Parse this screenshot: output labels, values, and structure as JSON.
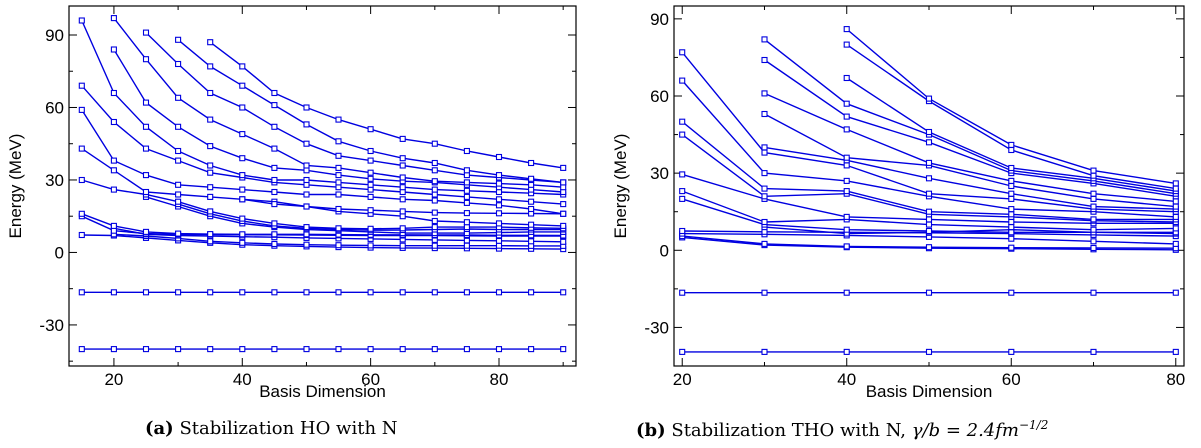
{
  "chart_data": [
    {
      "type": "line",
      "panel_label": "(a)",
      "caption": "Stabilization HO with N",
      "xlabel": "Basis Dimension",
      "ylabel": "Energy (MeV)",
      "xlim": [
        13,
        92
      ],
      "ylim": [
        -47,
        102
      ],
      "xticks": [
        20,
        40,
        60,
        80
      ],
      "yticks": [
        -30,
        0,
        30,
        60,
        90
      ],
      "grid": false,
      "color": "#0000e0",
      "x": [
        15,
        20,
        25,
        30,
        35,
        40,
        45,
        50,
        55,
        60,
        65,
        70,
        75,
        80,
        85,
        90
      ],
      "series": [
        {
          "values": [
            -40,
            -40,
            -40,
            -40,
            -40,
            -40,
            -40,
            -40,
            -40,
            -40,
            -40,
            -40,
            -40,
            -40,
            -40,
            -40
          ]
        },
        {
          "values": [
            -16.5,
            -16.5,
            -16.5,
            -16.5,
            -16.5,
            -16.5,
            -16.5,
            -16.5,
            -16.5,
            -16.5,
            -16.5,
            -16.5,
            -16.5,
            -16.5,
            -16.5,
            -16.5
          ]
        },
        {
          "values": [
            7.2,
            7,
            6,
            5,
            4,
            3.2,
            2.8,
            2.5,
            2.2,
            2,
            1.9,
            1.8,
            1.7,
            1.6,
            1.5,
            1.4
          ]
        },
        {
          "values": [
            null,
            7.5,
            6.8,
            5.8,
            4.6,
            4,
            3.5,
            3.2,
            3,
            2.9,
            2.8,
            2.8,
            2.8,
            2.8,
            2.7,
            2.7
          ]
        },
        {
          "values": [
            null,
            10,
            7.5,
            7,
            6.8,
            6.5,
            6.3,
            6,
            5.8,
            5.6,
            5.4,
            5.2,
            5,
            4.8,
            4.6,
            4.4
          ]
        },
        {
          "values": [
            15,
            9,
            7.8,
            7.5,
            7.4,
            7.3,
            7.3,
            7.2,
            7.1,
            7,
            7,
            7,
            6.9,
            6.8,
            6.8,
            6.8
          ]
        },
        {
          "values": [
            16,
            11,
            8.5,
            7.8,
            7.6,
            7.5,
            7.5,
            7.5,
            7.4,
            7.3,
            7.3,
            7.2,
            7.2,
            7.1,
            7.1,
            7
          ]
        },
        {
          "values": [
            null,
            null,
            23,
            19,
            15,
            12,
            10.5,
            9.5,
            9,
            8.5,
            8,
            8,
            8,
            8.2,
            8.5,
            8.5
          ]
        },
        {
          "values": [
            null,
            null,
            null,
            20,
            16,
            13,
            11,
            10,
            9.5,
            9.2,
            9.3,
            9.5,
            9.7,
            9.5,
            9.5,
            9.5
          ]
        },
        {
          "values": [
            30,
            26,
            24,
            21,
            17,
            14,
            12,
            10.5,
            10,
            9.8,
            10,
            10.5,
            10.5,
            10.5,
            10.2,
            10
          ]
        },
        {
          "values": [
            null,
            null,
            null,
            null,
            null,
            22,
            21,
            19,
            17,
            16,
            15,
            13,
            12.5,
            12,
            11.5,
            11
          ]
        },
        {
          "values": [
            43,
            34,
            25,
            24,
            23,
            22,
            20,
            19,
            18,
            17.5,
            17,
            16.5,
            16.3,
            16.2,
            16.1,
            16
          ]
        },
        {
          "values": [
            59,
            38,
            32,
            28,
            27,
            26,
            25,
            24,
            24,
            23,
            22,
            21.5,
            20.5,
            19.5,
            18,
            16
          ]
        },
        {
          "values": [
            69,
            54,
            43,
            38,
            33,
            31,
            29,
            28,
            27,
            26,
            25,
            24,
            23,
            22,
            21,
            20
          ]
        },
        {
          "values": [
            96,
            66,
            52,
            42,
            36,
            32,
            30,
            30,
            29,
            28,
            27,
            26,
            25.5,
            25,
            24.5,
            24
          ]
        },
        {
          "values": [
            null,
            84,
            62,
            52,
            44,
            39,
            35,
            34,
            32,
            30.5,
            29.5,
            29,
            28,
            27,
            26,
            25
          ]
        },
        {
          "values": [
            null,
            97,
            80,
            64,
            55,
            49,
            43,
            36,
            35,
            33,
            31,
            29.5,
            29,
            28.5,
            28,
            27
          ]
        },
        {
          "values": [
            null,
            null,
            91,
            78,
            66,
            60,
            52,
            45,
            40,
            38,
            36,
            34,
            32,
            31,
            30,
            29
          ]
        },
        {
          "values": [
            null,
            null,
            null,
            88,
            77,
            69,
            61,
            53,
            46,
            42,
            39,
            37,
            34,
            32,
            30.5,
            29
          ]
        },
        {
          "values": [
            null,
            null,
            null,
            null,
            87,
            77,
            66,
            60,
            55,
            51,
            47,
            45,
            42,
            39.5,
            37,
            35
          ]
        }
      ]
    },
    {
      "type": "line",
      "panel_label": "(b)",
      "caption": "Stabilization THO with N, ",
      "caption_math": "γ/b = 2.4fm",
      "caption_sup": "−1/2",
      "xlabel": "Basis Dimension",
      "ylabel": "Energy (MeV)",
      "xlim": [
        19,
        81
      ],
      "ylim": [
        -45,
        95
      ],
      "xticks": [
        20,
        40,
        60,
        80
      ],
      "yticks": [
        -30,
        0,
        30,
        60,
        90
      ],
      "grid": false,
      "color": "#0000e0",
      "x": [
        20,
        30,
        40,
        50,
        60,
        70,
        80
      ],
      "series": [
        {
          "values": [
            -39.5,
            -39.5,
            -39.5,
            -39.5,
            -39.5,
            -39.5,
            -39.5
          ]
        },
        {
          "values": [
            -16.5,
            -16.5,
            -16.5,
            -16.5,
            -16.5,
            -16.5,
            -16.5
          ]
        },
        {
          "values": [
            5,
            2,
            1.2,
            0.8,
            0.6,
            0.4,
            0.2
          ]
        },
        {
          "values": [
            5.5,
            2.5,
            1.5,
            1.2,
            1,
            0.9,
            0.8
          ]
        },
        {
          "values": [
            6.5,
            6.2,
            5.8,
            5.2,
            4.5,
            3.5,
            2.5
          ]
        },
        {
          "values": [
            7.5,
            7.2,
            7,
            6.8,
            6.5,
            6,
            5.5
          ]
        },
        {
          "values": [
            null,
            9,
            6.5,
            7,
            8,
            7,
            6.5
          ]
        },
        {
          "values": [
            20,
            10,
            8,
            7.5,
            7,
            7,
            7
          ]
        },
        {
          "values": [
            23,
            11,
            12,
            10,
            9,
            8,
            8.5
          ]
        },
        {
          "values": [
            29.5,
            20,
            13,
            12,
            11,
            10.5,
            10.5
          ]
        },
        {
          "values": [
            45,
            21,
            22,
            14,
            13,
            11.5,
            11
          ]
        },
        {
          "values": [
            50,
            24,
            23,
            15,
            14,
            12,
            12
          ]
        },
        {
          "values": [
            66,
            30,
            27,
            21,
            16,
            15,
            13
          ]
        },
        {
          "values": [
            77,
            38,
            33,
            22,
            20,
            16,
            15
          ]
        },
        {
          "values": [
            null,
            40,
            35,
            28,
            22,
            17,
            16
          ]
        },
        {
          "values": [
            null,
            53,
            36,
            33,
            25,
            20,
            17
          ]
        },
        {
          "values": [
            null,
            61,
            47,
            34,
            27,
            22,
            19
          ]
        },
        {
          "values": [
            null,
            74,
            52,
            42,
            30,
            26,
            21
          ]
        },
        {
          "values": [
            null,
            82,
            57,
            45,
            31,
            27,
            22
          ]
        },
        {
          "values": [
            null,
            null,
            67,
            46,
            32,
            28,
            23
          ]
        },
        {
          "values": [
            null,
            null,
            80,
            58,
            39,
            29,
            24
          ]
        },
        {
          "values": [
            null,
            null,
            86,
            59,
            41,
            31,
            26
          ]
        }
      ]
    }
  ]
}
